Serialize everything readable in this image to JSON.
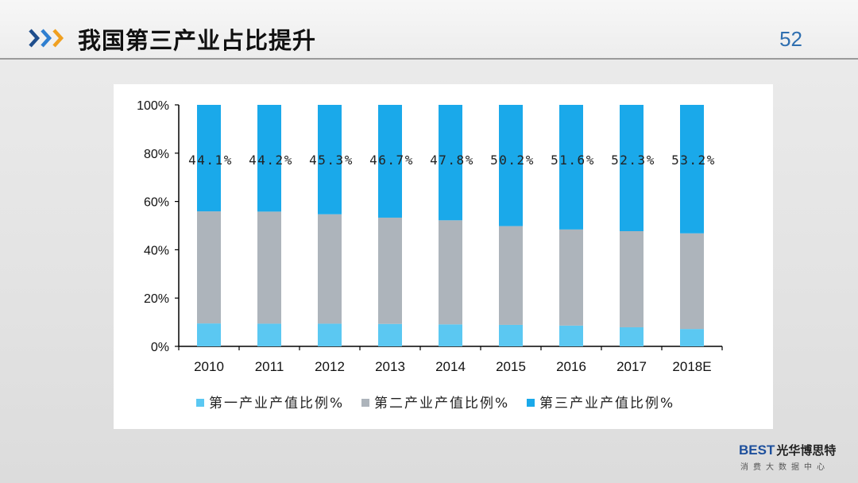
{
  "header": {
    "title": "我国第三产业占比提升",
    "page_number": "52"
  },
  "logo": {
    "brand": "BEST",
    "brand_cn": "光华博思特",
    "tagline": "消费大数据中心"
  },
  "colors": {
    "primary": "#5bc8f2",
    "secondary": "#adb4bb",
    "tertiary": "#1aa9ea",
    "accent": "#2f6fb0"
  },
  "chart_data": {
    "type": "bar",
    "stacked": true,
    "percent": true,
    "categories": [
      "2010",
      "2011",
      "2012",
      "2013",
      "2014",
      "2015",
      "2016",
      "2017",
      "2018E"
    ],
    "series": [
      {
        "name": "第一产业产值比例%",
        "color": "#5bc8f2",
        "values": [
          9.5,
          9.4,
          9.4,
          9.3,
          9.1,
          8.9,
          8.6,
          7.9,
          7.2
        ]
      },
      {
        "name": "第二产业产值比例%",
        "color": "#adb4bb",
        "values": [
          46.4,
          46.4,
          45.3,
          44.0,
          43.1,
          40.9,
          39.8,
          39.8,
          39.6
        ]
      },
      {
        "name": "第三产业产值比例%",
        "color": "#1aa9ea",
        "values": [
          44.1,
          44.2,
          45.3,
          46.7,
          47.8,
          50.2,
          51.6,
          52.3,
          53.2
        ]
      }
    ],
    "data_labels": [
      "44.1%",
      "44.2%",
      "45.3%",
      "46.7%",
      "47.8%",
      "50.2%",
      "51.6%",
      "52.3%",
      "53.2%"
    ],
    "ylim": [
      0,
      100
    ],
    "yticks": [
      "0%",
      "20%",
      "40%",
      "60%",
      "80%",
      "100%"
    ],
    "legend_position": "bottom",
    "grid": false
  }
}
